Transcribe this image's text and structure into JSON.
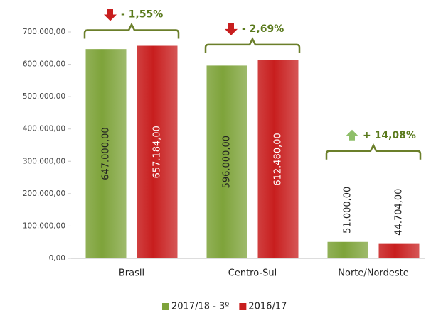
{
  "chart_data": {
    "type": "bar",
    "categories": [
      "Brasil",
      "Centro-Sul",
      "Norte/Nordeste"
    ],
    "series": [
      {
        "name": "2017/18 - 3º",
        "color": "#7ea33a",
        "values": [
          647000,
          596000,
          51000
        ],
        "value_labels": [
          "647.000,00",
          "596.000,00",
          "51.000,00"
        ]
      },
      {
        "name": "2016/17",
        "color": "#c81e1e",
        "values": [
          657184,
          612480,
          44704
        ],
        "value_labels": [
          "657.184,00",
          "612.480,00",
          "44.704,00"
        ]
      }
    ],
    "annotations": [
      "- 1,55%",
      "- 2,69%",
      "+ 14,08%"
    ],
    "ylim": [
      0,
      700000
    ],
    "yticks": [
      {
        "value": 0,
        "label": "0,00"
      },
      {
        "value": 100000,
        "label": "100.000,00"
      },
      {
        "value": 200000,
        "label": "200.000,00"
      },
      {
        "value": 300000,
        "label": "300.000,00"
      },
      {
        "value": 400000,
        "label": "400.000,00"
      },
      {
        "value": 500000,
        "label": "500.000,00"
      },
      {
        "value": 600000,
        "label": "600.000,00"
      },
      {
        "value": 700000,
        "label": "700.000,00"
      }
    ],
    "grid": false
  }
}
